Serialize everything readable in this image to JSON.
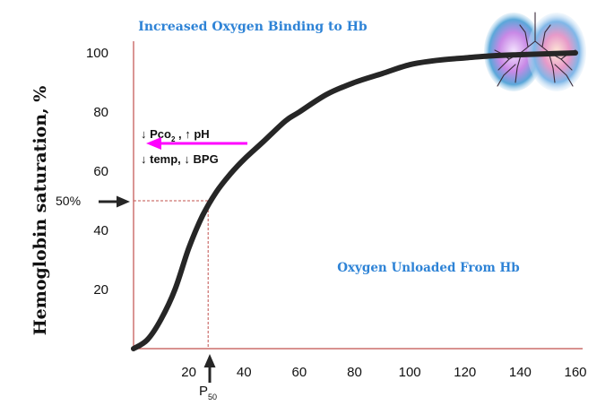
{
  "chart_data": {
    "type": "line",
    "title": "Increased Oxygen Binding to Hb",
    "ylabel": "Hemoglobin saturation, %",
    "xlabel": "",
    "xlim": [
      0,
      160
    ],
    "ylim": [
      0,
      100
    ],
    "x_ticks": [
      20,
      40,
      60,
      80,
      100,
      120,
      140,
      160
    ],
    "y_ticks": [
      20,
      40,
      60,
      80,
      100
    ],
    "grid": false,
    "series": [
      {
        "x": [
          0,
          5,
          10,
          15,
          20,
          25,
          30,
          35,
          40,
          47,
          55,
          60,
          70,
          80,
          90,
          100,
          110,
          120,
          130,
          140,
          150,
          160
        ],
        "y": [
          0,
          3,
          10,
          20,
          34,
          45,
          53,
          59,
          64,
          70,
          77,
          80,
          86,
          90,
          93,
          96,
          97.5,
          98.3,
          99,
          99.4,
          99.7,
          100
        ]
      }
    ],
    "annotations": {
      "p50_line": {
        "x": 27,
        "y": 50
      },
      "p50_label": "P",
      "p50_subscript": "50",
      "fifty_percent_label": "50%",
      "shift_line1_a": "↓ Pco",
      "shift_line1_sub": "2",
      "shift_line1_b": " , ↑ pH",
      "shift_line2": "↓ temp, ↓ BPG",
      "unloaded_label": "Oxygen Unloaded From Hb"
    },
    "colors": {
      "axis": "#c0504d",
      "curve": "#262626",
      "title": "#2e83d6",
      "unloaded": "#2e83d6",
      "shift_arrow": "#ff00ff",
      "guide": "#c0504d"
    }
  }
}
